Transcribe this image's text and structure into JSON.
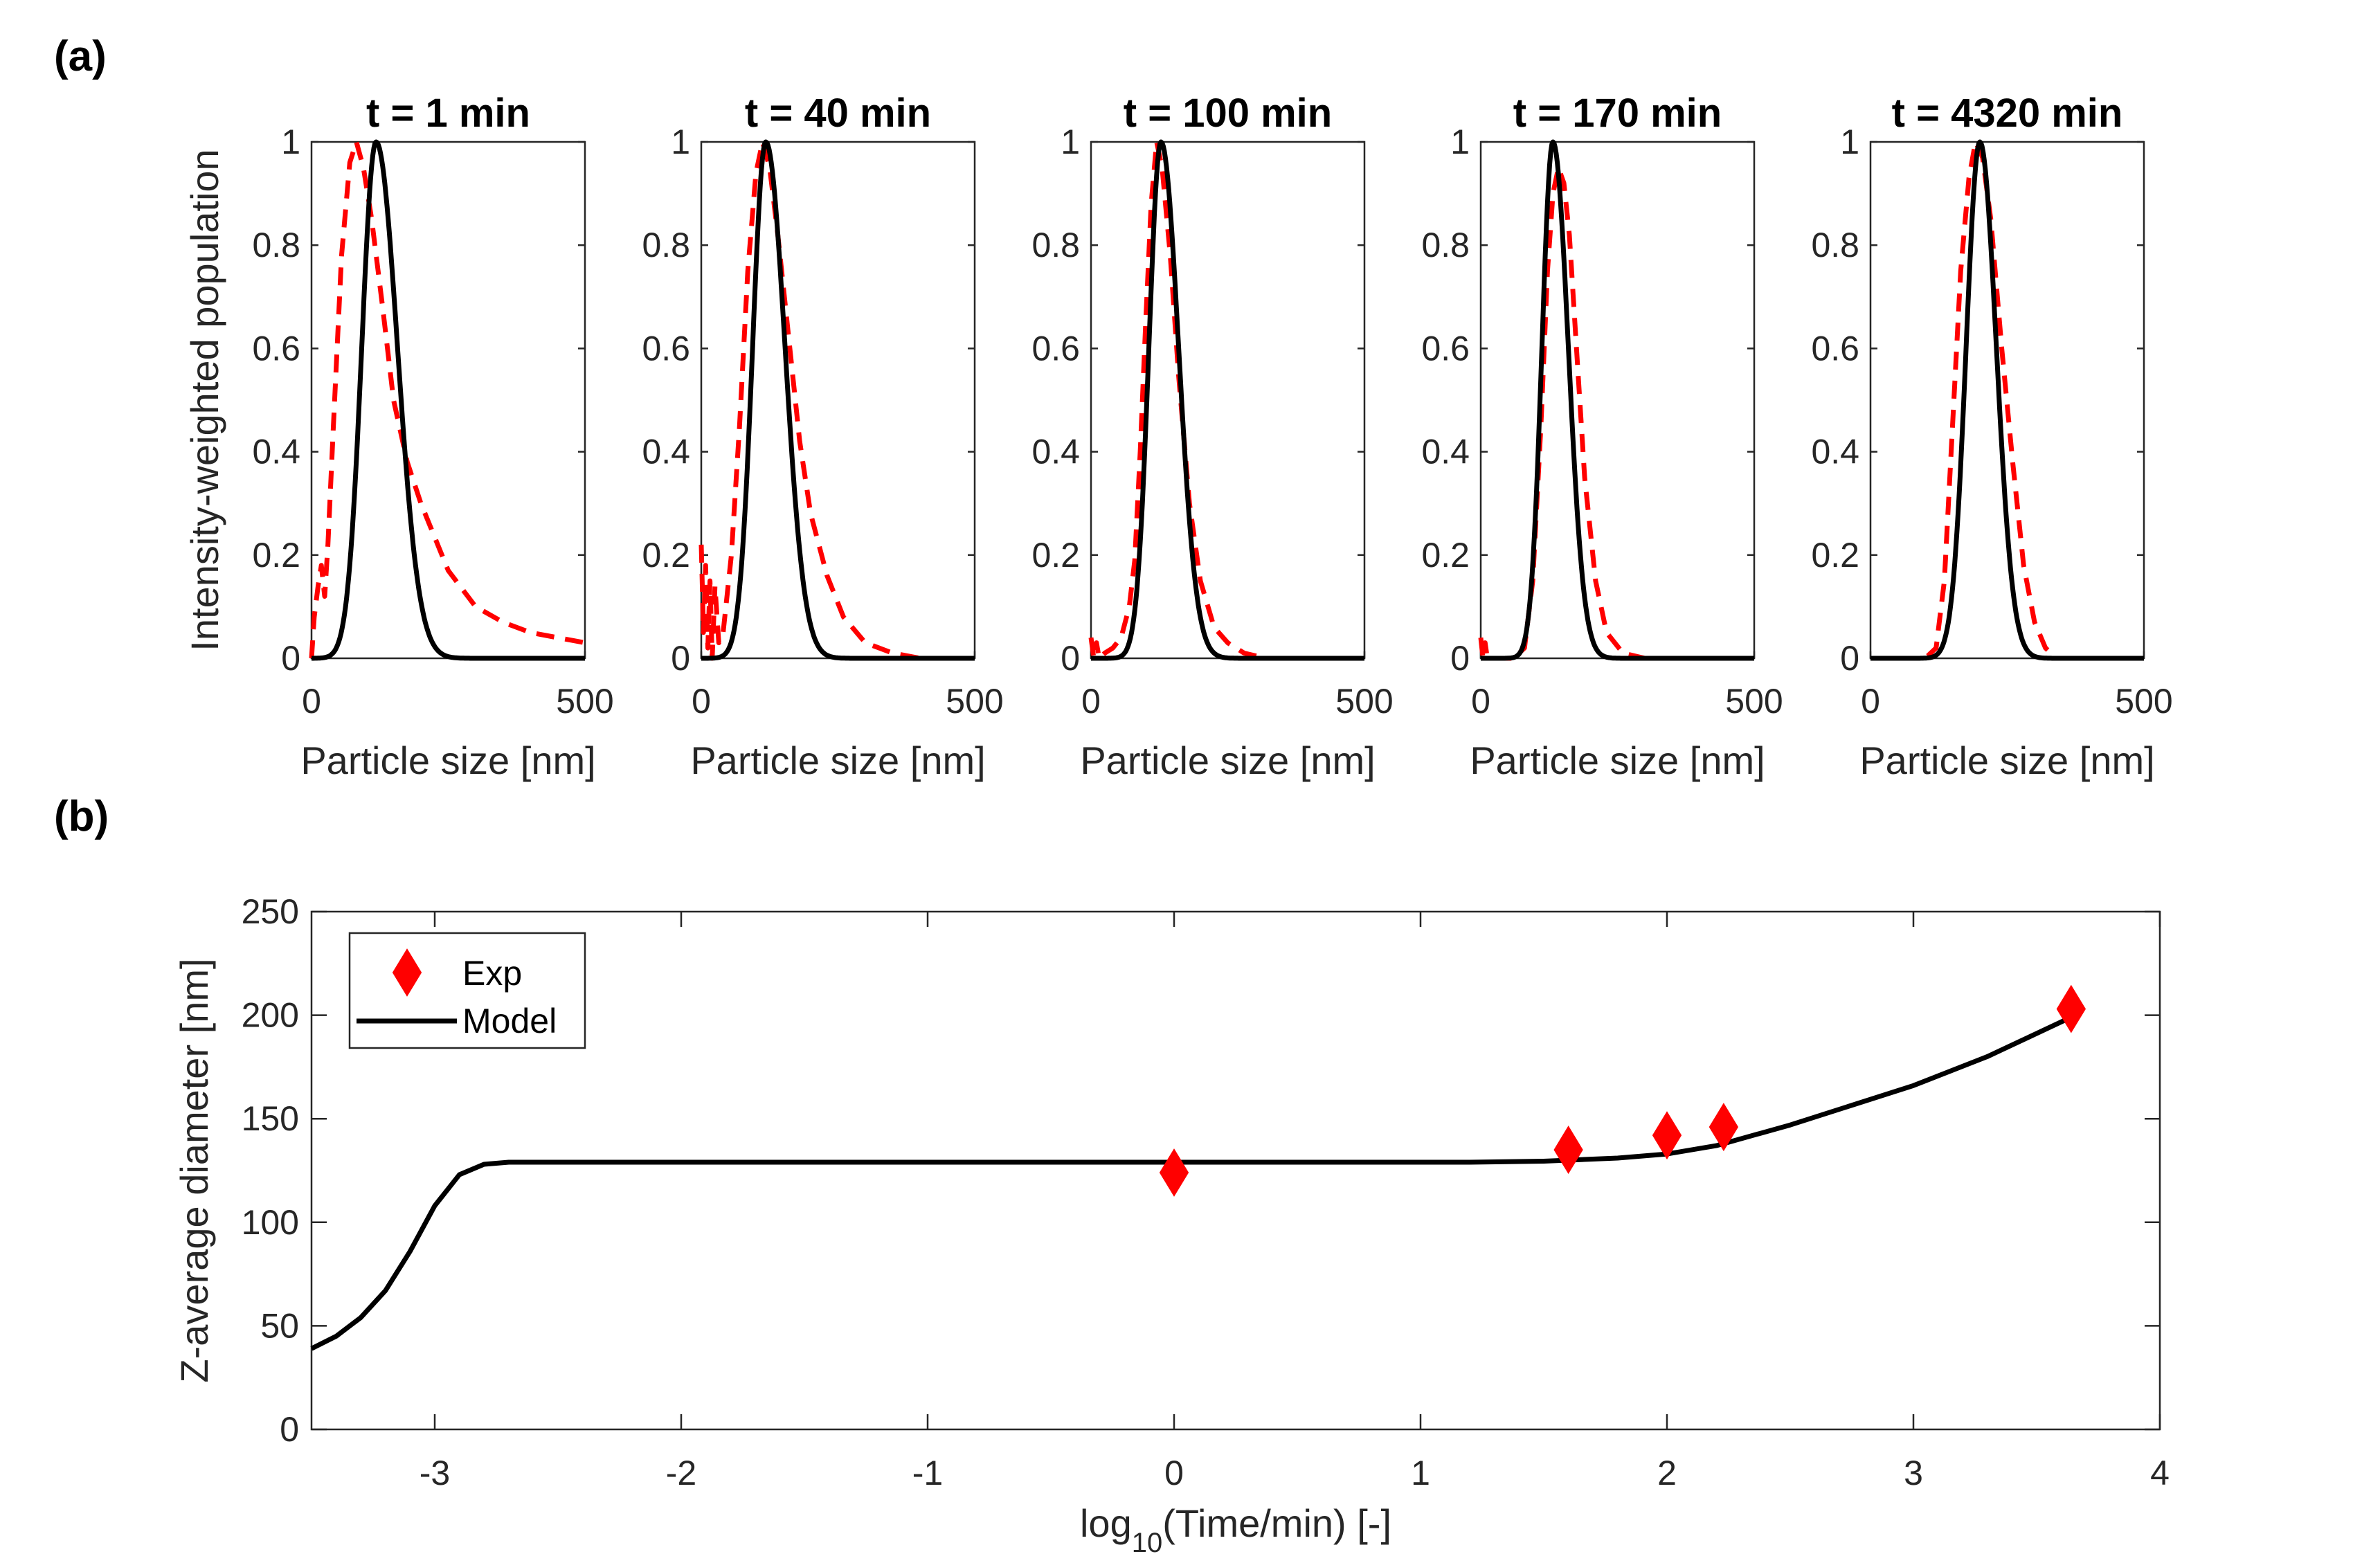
{
  "colors": {
    "model": "#000000",
    "exp": "#ff0000",
    "axis": "#262626"
  },
  "chart_data": [
    {
      "panel_label": "(a)",
      "type": "line",
      "shared_ylabel": "Intensity-weighted population",
      "xlabel": "Particle size [nm]",
      "xlim": [
        0,
        500
      ],
      "ylim": [
        0,
        1
      ],
      "xticks": [
        "0",
        "500"
      ],
      "yticks": [
        "0",
        "0.2",
        "0.4",
        "0.6",
        "0.8",
        "1"
      ],
      "series_styles": {
        "Exp": "red dashed",
        "Model": "black solid"
      },
      "subplots": [
        {
          "title": "t = 1 min",
          "model": {
            "mu": 118,
            "sigma_left": 26,
            "sigma_right": 39
          },
          "exp_points": [
            [
              0,
              0
            ],
            [
              5,
              0.08
            ],
            [
              12,
              0.14
            ],
            [
              18,
              0.18
            ],
            [
              24,
              0.12
            ],
            [
              30,
              0.22
            ],
            [
              40,
              0.45
            ],
            [
              55,
              0.78
            ],
            [
              70,
              0.96
            ],
            [
              82,
              1.0
            ],
            [
              95,
              0.95
            ],
            [
              110,
              0.85
            ],
            [
              130,
              0.68
            ],
            [
              150,
              0.5
            ],
            [
              175,
              0.38
            ],
            [
              200,
              0.3
            ],
            [
              250,
              0.17
            ],
            [
              300,
              0.1
            ],
            [
              350,
              0.07
            ],
            [
              400,
              0.05
            ],
            [
              450,
              0.04
            ],
            [
              500,
              0.03
            ]
          ]
        },
        {
          "title": "t = 40 min",
          "model": {
            "mu": 118,
            "sigma_left": 24,
            "sigma_right": 35
          },
          "exp_points": [
            [
              0,
              0.22
            ],
            [
              4,
              0.05
            ],
            [
              8,
              0.18
            ],
            [
              12,
              0.02
            ],
            [
              16,
              0.15
            ],
            [
              20,
              0.0
            ],
            [
              25,
              0.14
            ],
            [
              32,
              0.03
            ],
            [
              40,
              0.05
            ],
            [
              55,
              0.2
            ],
            [
              70,
              0.45
            ],
            [
              85,
              0.75
            ],
            [
              100,
              0.94
            ],
            [
              112,
              1.0
            ],
            [
              125,
              0.95
            ],
            [
              140,
              0.82
            ],
            [
              160,
              0.62
            ],
            [
              180,
              0.42
            ],
            [
              200,
              0.28
            ],
            [
              230,
              0.16
            ],
            [
              260,
              0.08
            ],
            [
              300,
              0.03
            ],
            [
              350,
              0.01
            ],
            [
              400,
              0.0
            ],
            [
              500,
              0.0
            ]
          ]
        },
        {
          "title": "t = 100 min",
          "model": {
            "mu": 128,
            "sigma_left": 22,
            "sigma_right": 32
          },
          "exp_points": [
            [
              0,
              0.04
            ],
            [
              5,
              0.0
            ],
            [
              10,
              0.03
            ],
            [
              15,
              0.0
            ],
            [
              25,
              0.01
            ],
            [
              40,
              0.02
            ],
            [
              55,
              0.04
            ],
            [
              70,
              0.1
            ],
            [
              80,
              0.19
            ],
            [
              90,
              0.4
            ],
            [
              100,
              0.65
            ],
            [
              110,
              0.88
            ],
            [
              120,
              1.0
            ],
            [
              130,
              0.95
            ],
            [
              145,
              0.78
            ],
            [
              160,
              0.55
            ],
            [
              180,
              0.3
            ],
            [
              200,
              0.15
            ],
            [
              225,
              0.06
            ],
            [
              250,
              0.03
            ],
            [
              280,
              0.01
            ],
            [
              320,
              0.0
            ],
            [
              500,
              0.0
            ]
          ]
        },
        {
          "title": "t = 170 min",
          "model": {
            "mu": 132,
            "sigma_left": 20,
            "sigma_right": 28
          },
          "exp_points": [
            [
              0,
              0.04
            ],
            [
              4,
              0.0
            ],
            [
              8,
              0.03
            ],
            [
              12,
              0.0
            ],
            [
              20,
              0.0
            ],
            [
              60,
              0.0
            ],
            [
              80,
              0.02
            ],
            [
              95,
              0.15
            ],
            [
              110,
              0.45
            ],
            [
              122,
              0.75
            ],
            [
              132,
              0.9
            ],
            [
              142,
              0.95
            ],
            [
              152,
              0.92
            ],
            [
              162,
              0.82
            ],
            [
              175,
              0.6
            ],
            [
              190,
              0.35
            ],
            [
              210,
              0.15
            ],
            [
              230,
              0.05
            ],
            [
              260,
              0.01
            ],
            [
              300,
              0.0
            ],
            [
              500,
              0.0
            ]
          ]
        },
        {
          "title": "t = 4320 min",
          "model": {
            "mu": 200,
            "sigma_left": 25,
            "sigma_right": 30
          },
          "exp_points": [
            [
              0,
              0.0
            ],
            [
              100,
              0.0
            ],
            [
              120,
              0.02
            ],
            [
              135,
              0.15
            ],
            [
              150,
              0.45
            ],
            [
              165,
              0.75
            ],
            [
              180,
              0.93
            ],
            [
              192,
              1.0
            ],
            [
              205,
              0.97
            ],
            [
              220,
              0.85
            ],
            [
              240,
              0.6
            ],
            [
              260,
              0.38
            ],
            [
              280,
              0.18
            ],
            [
              300,
              0.07
            ],
            [
              320,
              0.02
            ],
            [
              340,
              0.0
            ],
            [
              500,
              0.0
            ]
          ]
        }
      ]
    },
    {
      "panel_label": "(b)",
      "type": "line",
      "xlabel_prefix": "log",
      "xlabel_sub": "10",
      "xlabel_suffix": "(Time/min) [-]",
      "ylabel": "Z-average diameter [nm]",
      "xlim": [
        -3.5,
        4
      ],
      "ylim": [
        0,
        250
      ],
      "xticks": [
        "-3",
        "-2",
        "-1",
        "0",
        "1",
        "2",
        "3",
        "4"
      ],
      "yticks": [
        "0",
        "50",
        "100",
        "150",
        "200",
        "250"
      ],
      "legend": {
        "position": "top-left",
        "entries": [
          "Exp",
          "Model"
        ]
      },
      "exp": {
        "x": [
          0,
          1.6,
          2.0,
          2.23,
          3.64
        ],
        "y": [
          124,
          135,
          142,
          146,
          203
        ]
      },
      "model": {
        "x": [
          -3.5,
          -3.4,
          -3.3,
          -3.2,
          -3.1,
          -3.0,
          -2.9,
          -2.8,
          -2.7,
          -2.5,
          -2.0,
          -1.0,
          0.0,
          1.0,
          1.2,
          1.5,
          1.8,
          2.0,
          2.2,
          2.5,
          3.0,
          3.3,
          3.64
        ],
        "y": [
          39,
          45,
          54,
          67,
          86,
          108,
          123,
          128,
          129,
          129,
          129,
          129,
          129,
          129,
          129,
          129.5,
          131,
          133,
          137,
          147,
          166,
          180,
          199
        ]
      }
    }
  ]
}
